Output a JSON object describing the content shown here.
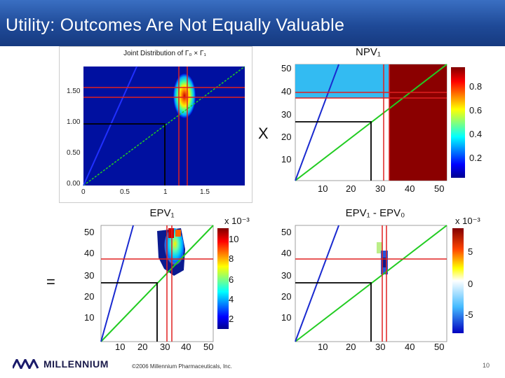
{
  "header": {
    "title": "Utility: Outcomes Are Not Equally Valuable"
  },
  "operators": {
    "multiply": "X",
    "equals": "="
  },
  "panels": {
    "joint": {
      "title": "Joint Distribution of Γ₀ × Γ₁",
      "yticks": [
        "1.50",
        "1.00",
        "0.50",
        "0.00"
      ],
      "xticks": [
        "0",
        "0.5",
        "1",
        "1.5"
      ]
    },
    "npv": {
      "title": "NPV₁",
      "yticks": [
        "50",
        "40",
        "30",
        "20",
        "10"
      ],
      "xticks": [
        "10",
        "20",
        "30",
        "40",
        "50"
      ],
      "cbar_ticks": [
        "0.8",
        "0.6",
        "0.4",
        "0.2"
      ],
      "cbar_exponent": ""
    },
    "epv1": {
      "title": "EPV₁",
      "yticks": [
        "50",
        "40",
        "30",
        "20",
        "10"
      ],
      "xticks": [
        "10",
        "20",
        "30",
        "40",
        "50"
      ],
      "cbar_ticks": [
        "10",
        "8",
        "6",
        "4",
        "2"
      ],
      "cbar_exponent": "x 10⁻³"
    },
    "diff": {
      "title": "EPV₁ - EPV₀",
      "yticks": [
        "50",
        "40",
        "30",
        "20",
        "10"
      ],
      "xticks": [
        "10",
        "20",
        "30",
        "40",
        "50"
      ],
      "cbar_ticks": [
        "5",
        "0",
        "-5"
      ],
      "cbar_exponent": "x 10⁻³"
    }
  },
  "footer": {
    "logo": "MILLENNIUM",
    "copyright": "©2006 Millennium Pharmaceuticals, Inc.",
    "page": "10"
  },
  "colors": {
    "banner": "#1f4a98",
    "red_line": "#e02020",
    "green_line": "#22cc22",
    "blue_line": "#1a2ad0",
    "dark_red": "#8b0000",
    "light_blue": "#33bbf2"
  }
}
